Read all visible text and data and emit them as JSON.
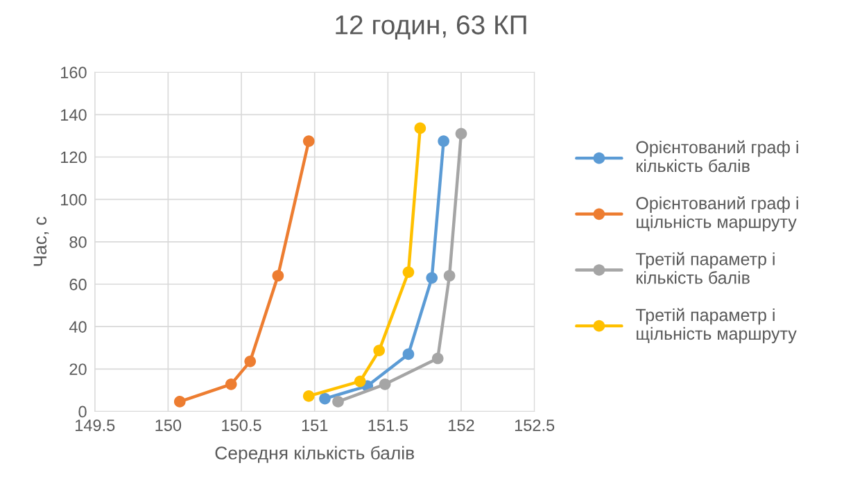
{
  "chart_data": {
    "type": "line",
    "title": "12 годин, 63 КП",
    "xlabel": "Середня кількість балів",
    "ylabel": "Час, с",
    "xlim": [
      149.5,
      152.5
    ],
    "xticks": [
      149.5,
      150,
      150.5,
      151,
      151.5,
      152,
      152.5
    ],
    "ylim": [
      0,
      160
    ],
    "yticks": [
      0,
      20,
      40,
      60,
      80,
      100,
      120,
      140,
      160
    ],
    "grid": true,
    "legend": "right",
    "marker": "circle",
    "line_style": "solid",
    "series": [
      {
        "name": "Орієнтований граф і кількість балів",
        "color": "#5b9bd5",
        "x": [
          151.07,
          151.36,
          151.64,
          151.8,
          151.88
        ],
        "values": [
          6,
          12,
          27,
          63,
          127.5
        ]
      },
      {
        "name": "Орієнтований граф і щільність маршруту",
        "color": "#ed7d31",
        "x": [
          150.08,
          150.43,
          150.56,
          150.75,
          150.96
        ],
        "values": [
          4.6,
          12.8,
          23.6,
          64,
          127.5
        ]
      },
      {
        "name": "Третій параметр і кількість балів",
        "color": "#a5a5a5",
        "x": [
          151.16,
          151.48,
          151.84,
          151.92,
          152.0
        ],
        "values": [
          4.6,
          12.8,
          25,
          64,
          131
        ]
      },
      {
        "name": "Третій параметр і щільність маршруту",
        "color": "#ffc000",
        "x": [
          150.96,
          151.31,
          151.44,
          151.64,
          151.72
        ],
        "values": [
          7.2,
          14.2,
          28.7,
          65.7,
          133.6
        ]
      }
    ]
  }
}
